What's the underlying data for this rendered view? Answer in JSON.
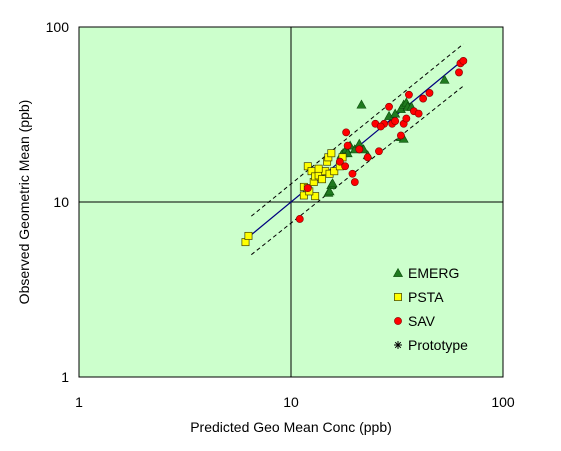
{
  "chart_data": {
    "type": "scatter",
    "xlabel": "Predicted Geo Mean Conc (ppb)",
    "ylabel": "Observed Geometric Mean (ppb)",
    "x_scale": "log",
    "y_scale": "log",
    "xlim": [
      1,
      100
    ],
    "ylim": [
      1,
      100
    ],
    "x_ticks": [
      {
        "value": 1,
        "label": "1"
      },
      {
        "value": 10,
        "label": "10"
      },
      {
        "value": 100,
        "label": "100"
      }
    ],
    "y_ticks": [
      {
        "value": 1,
        "label": "1"
      },
      {
        "value": 10,
        "label": "10"
      },
      {
        "value": 100,
        "label": "100"
      }
    ],
    "reference_lines": [
      {
        "axis": "x",
        "value": 10
      },
      {
        "axis": "y",
        "value": 10
      }
    ],
    "grid": false,
    "background_color": "#ccffcc",
    "legend_position": "bottom-right",
    "fit_line": {
      "style": "solid",
      "color": "#00007f",
      "x": [
        6.5,
        65
      ],
      "y": [
        6.5,
        65
      ]
    },
    "confidence_bands": {
      "style": "dashed",
      "color": "#000000",
      "upper": {
        "x": [
          6.5,
          65
        ],
        "y": [
          8.3,
          80
        ]
      },
      "lower": {
        "x": [
          6.5,
          65
        ],
        "y": [
          5.0,
          46
        ]
      }
    },
    "series": [
      {
        "name": "EMERG",
        "marker": "triangle",
        "color": "#1f7a1f",
        "points": [
          [
            21.5,
            36
          ],
          [
            17.6,
            19
          ],
          [
            18.2,
            20
          ],
          [
            19,
            21
          ],
          [
            20,
            20
          ],
          [
            21,
            21.5
          ],
          [
            22,
            20
          ],
          [
            23,
            18.5
          ],
          [
            17.3,
            18.6
          ],
          [
            15,
            11.3
          ],
          [
            15.5,
            12.5
          ],
          [
            15.7,
            12.8
          ],
          [
            29,
            31
          ],
          [
            31,
            32
          ],
          [
            33,
            34
          ],
          [
            34,
            36
          ],
          [
            35,
            37
          ],
          [
            35.5,
            35
          ],
          [
            37,
            35
          ],
          [
            53,
            50
          ],
          [
            33,
            23.5
          ],
          [
            34,
            23
          ],
          [
            18.5,
            19
          ],
          [
            15.2,
            11.5
          ]
        ]
      },
      {
        "name": "PSTA",
        "marker": "square",
        "color": "#ffff00",
        "points": [
          [
            6.1,
            5.9
          ],
          [
            6.3,
            6.4
          ],
          [
            11.5,
            10.9
          ],
          [
            11.5,
            12.2
          ],
          [
            12,
            12
          ],
          [
            12,
            16
          ],
          [
            12.5,
            15
          ],
          [
            12.8,
            13
          ],
          [
            13,
            10.8
          ],
          [
            13,
            14
          ],
          [
            13.5,
            14.2
          ],
          [
            14,
            13.5
          ],
          [
            14.5,
            15
          ],
          [
            14.8,
            17
          ],
          [
            15,
            18
          ],
          [
            15.5,
            19
          ],
          [
            15.2,
            14.5
          ],
          [
            16,
            15
          ],
          [
            17,
            16
          ],
          [
            17.5,
            18
          ],
          [
            13.5,
            15.5
          ],
          [
            12.2,
            11.5
          ]
        ]
      },
      {
        "name": "SAV",
        "marker": "circle",
        "color": "#ff0000",
        "points": [
          [
            11,
            8
          ],
          [
            12,
            12
          ],
          [
            17,
            17
          ],
          [
            18,
            16
          ],
          [
            18.2,
            25
          ],
          [
            18.5,
            21
          ],
          [
            19.5,
            14.5
          ],
          [
            20,
            13
          ],
          [
            21,
            20
          ],
          [
            23,
            18
          ],
          [
            25,
            28
          ],
          [
            26,
            19.5
          ],
          [
            27.5,
            28
          ],
          [
            29,
            35
          ],
          [
            30,
            28
          ],
          [
            31,
            29
          ],
          [
            33,
            24
          ],
          [
            34,
            28
          ],
          [
            35,
            30
          ],
          [
            36,
            41
          ],
          [
            38,
            33
          ],
          [
            40,
            32
          ],
          [
            45,
            42
          ],
          [
            62,
            55
          ],
          [
            63,
            62
          ],
          [
            65,
            64
          ],
          [
            42,
            39
          ],
          [
            26.5,
            27
          ]
        ]
      },
      {
        "name": "Prototype",
        "marker": "asterisk",
        "color": "#000000",
        "points": []
      }
    ]
  }
}
